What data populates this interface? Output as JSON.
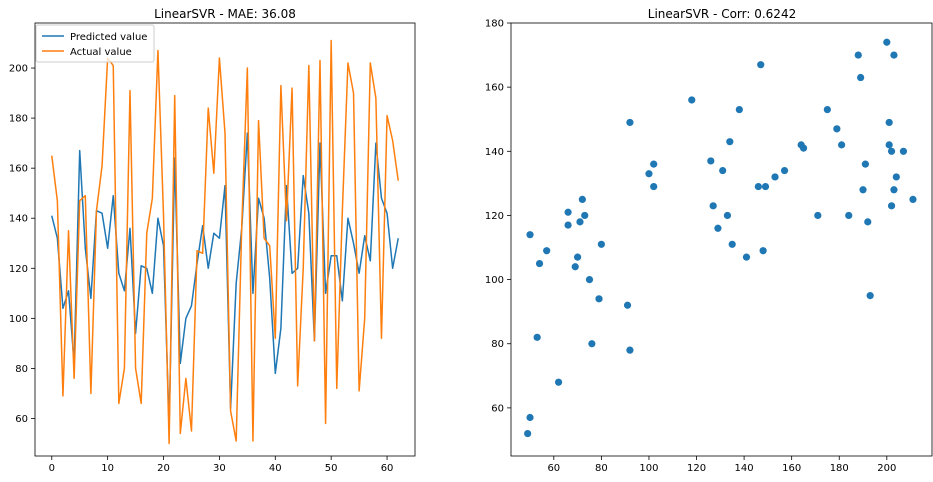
{
  "chart_data": [
    {
      "type": "line",
      "title": "LinearSVR  - MAE: 36.08",
      "xlabel": "",
      "ylabel": "",
      "xlim": [
        -3,
        65
      ],
      "ylim": [
        45,
        218
      ],
      "xticks": [
        0,
        10,
        20,
        30,
        40,
        50,
        60
      ],
      "yticks": [
        60,
        80,
        100,
        120,
        140,
        160,
        180,
        200
      ],
      "legend_position": "top-left",
      "grid": false,
      "x": [
        0,
        1,
        2,
        3,
        4,
        5,
        6,
        7,
        8,
        9,
        10,
        11,
        12,
        13,
        14,
        15,
        16,
        17,
        18,
        19,
        20,
        21,
        22,
        23,
        24,
        25,
        26,
        27,
        28,
        29,
        30,
        31,
        32,
        33,
        34,
        35,
        36,
        37,
        38,
        39,
        40,
        41,
        42,
        43,
        44,
        45,
        46,
        47,
        48,
        49,
        50,
        51,
        52,
        53,
        54,
        55,
        56,
        57,
        58,
        59,
        60,
        61,
        62
      ],
      "series": [
        {
          "name": "Predicted value",
          "color": "#1f77b4",
          "values": [
            141,
            132,
            104,
            111,
            82,
            167,
            128,
            108,
            143,
            142,
            128,
            149,
            118,
            111,
            136,
            94,
            121,
            120,
            110,
            140,
            129,
            57,
            164,
            82,
            100,
            105,
            122,
            137,
            120,
            134,
            132,
            153,
            64,
            114,
            136,
            174,
            110,
            148,
            140,
            116,
            78,
            96,
            153,
            118,
            120,
            157,
            142,
            91,
            170,
            110,
            125,
            125,
            107,
            140,
            130,
            118,
            133,
            123,
            170,
            148,
            142,
            120,
            132
          ]
        },
        {
          "name": "Actual value",
          "color": "#ff7f0e",
          "values": [
            165,
            147,
            69,
            135,
            76,
            147,
            149,
            70,
            143,
            161,
            204,
            201,
            66,
            80,
            191,
            80,
            66,
            134,
            148,
            207,
            141,
            50,
            189,
            54,
            76,
            55,
            127,
            126,
            184,
            158,
            204,
            174,
            63,
            51,
            137,
            200,
            51,
            179,
            132,
            129,
            92,
            193,
            139,
            192,
            73,
            120,
            201,
            91,
            203,
            58,
            211,
            72,
            143,
            202,
            190,
            71,
            100,
            202,
            188,
            92,
            181,
            171,
            155
          ]
        }
      ]
    },
    {
      "type": "scatter",
      "title": "LinearSVR  - Corr: 0.6242",
      "xlabel": "",
      "ylabel": "",
      "xlim": [
        42,
        219
      ],
      "ylim": [
        45,
        180
      ],
      "xticks": [
        60,
        80,
        100,
        120,
        140,
        160,
        180,
        200
      ],
      "yticks": [
        60,
        80,
        100,
        120,
        140,
        160,
        180
      ],
      "grid": false,
      "color": "#1f77b4",
      "points": [
        [
          50,
          114
        ],
        [
          50,
          57
        ],
        [
          49,
          52
        ],
        [
          53,
          82
        ],
        [
          54,
          105
        ],
        [
          57,
          109
        ],
        [
          62,
          68
        ],
        [
          66,
          117
        ],
        [
          66,
          121
        ],
        [
          69,
          104
        ],
        [
          70,
          107
        ],
        [
          71,
          118
        ],
        [
          72,
          125
        ],
        [
          73,
          120
        ],
        [
          75,
          100
        ],
        [
          76,
          80
        ],
        [
          79,
          94
        ],
        [
          80,
          111
        ],
        [
          91,
          92
        ],
        [
          92,
          78
        ],
        [
          92,
          149
        ],
        [
          100,
          133
        ],
        [
          102,
          136
        ],
        [
          102,
          129
        ],
        [
          118,
          156
        ],
        [
          126,
          137
        ],
        [
          127,
          123
        ],
        [
          129,
          116
        ],
        [
          131,
          134
        ],
        [
          133,
          120
        ],
        [
          134,
          143
        ],
        [
          135,
          111
        ],
        [
          138,
          153
        ],
        [
          141,
          107
        ],
        [
          146,
          129
        ],
        [
          147,
          167
        ],
        [
          148,
          109
        ],
        [
          149,
          129
        ],
        [
          153,
          132
        ],
        [
          157,
          134
        ],
        [
          164,
          142
        ],
        [
          165,
          141
        ],
        [
          171,
          120
        ],
        [
          175,
          153
        ],
        [
          179,
          147
        ],
        [
          181,
          142
        ],
        [
          184,
          120
        ],
        [
          188,
          170
        ],
        [
          189,
          163
        ],
        [
          190,
          128
        ],
        [
          191,
          136
        ],
        [
          192,
          118
        ],
        [
          193,
          95
        ],
        [
          200,
          174
        ],
        [
          201,
          142
        ],
        [
          201,
          149
        ],
        [
          202,
          123
        ],
        [
          202,
          140
        ],
        [
          203,
          170
        ],
        [
          203,
          128
        ],
        [
          204,
          132
        ],
        [
          207,
          140
        ],
        [
          211,
          125
        ]
      ]
    }
  ]
}
